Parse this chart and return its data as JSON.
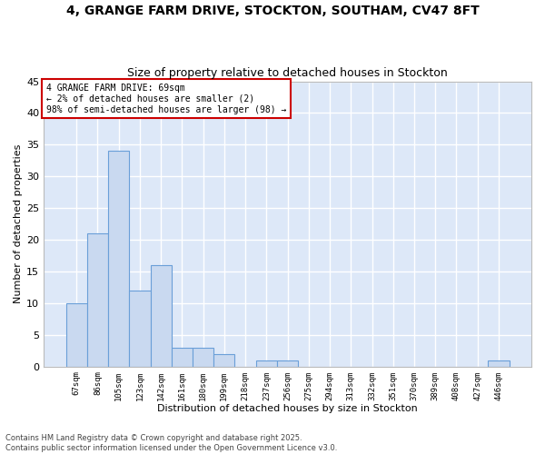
{
  "title_line1": "4, GRANGE FARM DRIVE, STOCKTON, SOUTHAM, CV47 8FT",
  "title_line2": "Size of property relative to detached houses in Stockton",
  "xlabel": "Distribution of detached houses by size in Stockton",
  "ylabel": "Number of detached properties",
  "categories": [
    "67sqm",
    "86sqm",
    "105sqm",
    "123sqm",
    "142sqm",
    "161sqm",
    "180sqm",
    "199sqm",
    "218sqm",
    "237sqm",
    "256sqm",
    "275sqm",
    "294sqm",
    "313sqm",
    "332sqm",
    "351sqm",
    "370sqm",
    "389sqm",
    "408sqm",
    "427sqm",
    "446sqm"
  ],
  "values": [
    10,
    21,
    34,
    12,
    16,
    3,
    3,
    2,
    0,
    1,
    1,
    0,
    0,
    0,
    0,
    0,
    0,
    0,
    0,
    0,
    1
  ],
  "bar_color": "#c9d9f0",
  "bar_edge_color": "#6a9fd8",
  "annotation_text": "4 GRANGE FARM DRIVE: 69sqm\n← 2% of detached houses are smaller (2)\n98% of semi-detached houses are larger (98) →",
  "annotation_box_color": "#ffffff",
  "annotation_box_edge_color": "#cc0000",
  "ylim": [
    0,
    45
  ],
  "yticks": [
    0,
    5,
    10,
    15,
    20,
    25,
    30,
    35,
    40,
    45
  ],
  "background_color": "#ffffff",
  "plot_bg_color": "#dde8f8",
  "grid_color": "#ffffff",
  "footer_line1": "Contains HM Land Registry data © Crown copyright and database right 2025.",
  "footer_line2": "Contains public sector information licensed under the Open Government Licence v3.0."
}
